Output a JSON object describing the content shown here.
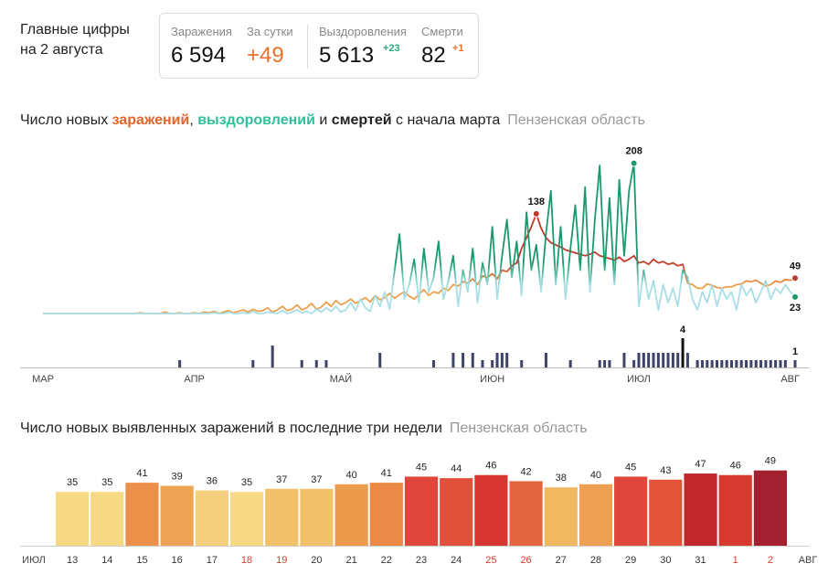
{
  "header": {
    "title": [
      "Главные цифры",
      "на 2 августа"
    ],
    "stats": [
      {
        "label": "Заражения",
        "value": "6 594"
      },
      {
        "label": "За сутки",
        "value": "+49",
        "color": "#e8702a"
      },
      {
        "label": "Выздоровления",
        "value": "5 613",
        "delta": "+23",
        "delta_color": "#2aa87a"
      },
      {
        "label": "Смерти",
        "value": "82",
        "delta": "+1",
        "delta_color": "#e8702a"
      }
    ]
  },
  "chart_data": [
    {
      "type": "line",
      "title_parts": [
        {
          "text": "Число новых ",
          "color": "#222",
          "bold": false
        },
        {
          "text": "заражений",
          "color": "#e0652a",
          "bold": true
        },
        {
          "text": ", ",
          "color": "#222",
          "bold": false
        },
        {
          "text": "выздоровлений",
          "color": "#2fbf9a",
          "bold": true
        },
        {
          "text": " и ",
          "color": "#222",
          "bold": false
        },
        {
          "text": "смертей",
          "color": "#222",
          "bold": true
        },
        {
          "text": " с начала марта",
          "color": "#222",
          "bold": false
        }
      ],
      "region": "Пензенская область",
      "categories": [
        "МАР",
        null,
        null,
        null,
        null,
        null,
        null,
        null,
        null,
        null,
        null,
        null,
        null,
        null,
        null,
        null,
        null,
        null,
        null,
        null,
        null,
        null,
        null,
        null,
        null,
        null,
        null,
        null,
        null,
        null,
        null,
        "АПР",
        null,
        null,
        null,
        null,
        null,
        null,
        null,
        null,
        null,
        null,
        null,
        null,
        null,
        null,
        null,
        null,
        null,
        null,
        null,
        null,
        null,
        null,
        null,
        null,
        null,
        null,
        null,
        null,
        null,
        "МАЙ",
        null,
        null,
        null,
        null,
        null,
        null,
        null,
        null,
        null,
        null,
        null,
        null,
        null,
        null,
        null,
        null,
        null,
        null,
        null,
        null,
        null,
        null,
        null,
        null,
        null,
        null,
        null,
        null,
        null,
        null,
        "ИЮН",
        null,
        null,
        null,
        null,
        null,
        null,
        null,
        null,
        null,
        null,
        null,
        null,
        null,
        null,
        null,
        null,
        null,
        null,
        null,
        null,
        null,
        null,
        null,
        null,
        null,
        null,
        null,
        null,
        null,
        "ИЮЛ",
        null,
        null,
        null,
        null,
        null,
        null,
        null,
        null,
        null,
        null,
        null,
        null,
        null,
        null,
        null,
        null,
        null,
        null,
        null,
        null,
        null,
        null,
        null,
        null,
        null,
        null,
        null,
        null,
        null,
        null,
        "АВГ",
        null
      ],
      "ylim": [
        0,
        210
      ],
      "y2lim": [
        0,
        5
      ],
      "series": [
        {
          "color": "#c0392b",
          "low_color": "#eca04e",
          "values": [
            0,
            0,
            0,
            0,
            0,
            0,
            0,
            0,
            0,
            0,
            0,
            0,
            0,
            0,
            0,
            0,
            0,
            0,
            0,
            0,
            1,
            0,
            0,
            0,
            0,
            2,
            0,
            0,
            1,
            0,
            0,
            1,
            0,
            2,
            1,
            3,
            0,
            2,
            4,
            1,
            3,
            5,
            2,
            6,
            3,
            4,
            8,
            2,
            5,
            10,
            4,
            6,
            12,
            5,
            8,
            14,
            6,
            9,
            16,
            10,
            18,
            12,
            15,
            20,
            14,
            18,
            22,
            16,
            25,
            19,
            22,
            28,
            21,
            26,
            30,
            24,
            20,
            27,
            33,
            25,
            30,
            28,
            35,
            32,
            40,
            38,
            44,
            42,
            48,
            40,
            52,
            50,
            55,
            48,
            60,
            58,
            66,
            70,
            90,
            105,
            120,
            138,
            118,
            105,
            98,
            95,
            92,
            88,
            86,
            84,
            82,
            80,
            82,
            85,
            80,
            78,
            76,
            74,
            78,
            72,
            75,
            80,
            70,
            72,
            68,
            75,
            70,
            72,
            68,
            70,
            66,
            68,
            42,
            40,
            35,
            35,
            41,
            39,
            36,
            35,
            37,
            37,
            40,
            41,
            45,
            44,
            46,
            42,
            38,
            40,
            45,
            43,
            47,
            46,
            49
          ]
        },
        {
          "color": "#1a9a6c",
          "low_color": "#a8dfe6",
          "values": [
            0,
            0,
            0,
            0,
            0,
            0,
            0,
            0,
            0,
            0,
            0,
            0,
            0,
            0,
            0,
            0,
            0,
            0,
            0,
            0,
            0,
            0,
            0,
            0,
            0,
            0,
            0,
            0,
            0,
            0,
            0,
            0,
            0,
            0,
            0,
            1,
            0,
            0,
            2,
            0,
            0,
            1,
            0,
            3,
            0,
            0,
            2,
            1,
            0,
            4,
            0,
            2,
            5,
            1,
            3,
            0,
            6,
            2,
            8,
            3,
            10,
            2,
            5,
            15,
            4,
            20,
            8,
            3,
            25,
            10,
            30,
            6,
            60,
            110,
            20,
            40,
            75,
            15,
            90,
            30,
            50,
            100,
            20,
            45,
            80,
            10,
            60,
            30,
            90,
            15,
            70,
            40,
            120,
            20,
            80,
            130,
            50,
            100,
            25,
            140,
            60,
            95,
            30,
            110,
            170,
            40,
            120,
            20,
            90,
            150,
            60,
            175,
            30,
            130,
            205,
            60,
            160,
            40,
            185,
            80,
            170,
            208,
            10,
            60,
            20,
            45,
            5,
            40,
            15,
            35,
            10,
            60,
            50,
            20,
            5,
            30,
            15,
            40,
            10,
            35,
            20,
            30,
            5,
            40,
            25,
            35,
            15,
            30,
            45,
            20,
            35,
            28,
            40,
            30,
            23
          ]
        },
        {
          "type": "bar",
          "axis": "y2",
          "color": "#3d4466",
          "values": [
            0,
            0,
            0,
            0,
            0,
            0,
            0,
            0,
            0,
            0,
            0,
            0,
            0,
            0,
            0,
            0,
            0,
            0,
            0,
            0,
            0,
            0,
            0,
            0,
            0,
            0,
            0,
            0,
            1,
            0,
            0,
            0,
            0,
            0,
            0,
            0,
            0,
            0,
            0,
            0,
            0,
            0,
            0,
            1,
            0,
            0,
            0,
            3,
            0,
            0,
            0,
            0,
            0,
            1,
            0,
            0,
            1,
            0,
            1,
            0,
            0,
            0,
            0,
            0,
            0,
            0,
            0,
            0,
            0,
            2,
            0,
            0,
            0,
            0,
            0,
            0,
            0,
            0,
            0,
            0,
            1,
            0,
            0,
            0,
            2,
            0,
            2,
            0,
            2,
            0,
            1,
            0,
            1,
            2,
            2,
            2,
            0,
            0,
            1,
            0,
            0,
            0,
            0,
            2,
            0,
            0,
            0,
            0,
            1,
            0,
            0,
            0,
            0,
            0,
            1,
            1,
            1,
            0,
            0,
            2,
            0,
            1,
            2,
            2,
            2,
            2,
            2,
            2,
            2,
            2,
            2,
            4,
            2,
            0,
            1,
            1,
            1,
            1,
            1,
            1,
            1,
            1,
            1,
            1,
            1,
            1,
            1,
            1,
            1,
            1,
            1,
            1,
            1,
            0,
            1
          ]
        }
      ]
    },
    {
      "type": "bar",
      "title": "Число новых выявленных заражений в последние три недели",
      "region": "Пензенская область",
      "start_label": "ИЮЛ",
      "end_label": "АВГ",
      "categories": [
        "13",
        "14",
        "15",
        "16",
        "17",
        "18",
        "19",
        "20",
        "21",
        "22",
        "23",
        "24",
        "25",
        "26",
        "27",
        "28",
        "29",
        "30",
        "31",
        "1",
        "2"
      ],
      "label_colors": [
        "#333",
        "#333",
        "#333",
        "#333",
        "#333",
        "#d63a2f",
        "#d63a2f",
        "#333",
        "#333",
        "#333",
        "#333",
        "#333",
        "#d63a2f",
        "#d63a2f",
        "#333",
        "#333",
        "#333",
        "#333",
        "#333",
        "#d63a2f",
        "#d63a2f"
      ],
      "values": [
        35,
        35,
        41,
        39,
        36,
        35,
        37,
        37,
        40,
        41,
        45,
        44,
        46,
        42,
        38,
        40,
        45,
        43,
        47,
        46,
        49
      ],
      "colors": [
        "#f6d985",
        "#f6d985",
        "#ec8f48",
        "#eea254",
        "#f5cf7c",
        "#f6d985",
        "#f3c06a",
        "#f3c06a",
        "#ec9a4c",
        "#ea8a46",
        "#e0463a",
        "#e0503a",
        "#d6362f",
        "#e2653f",
        "#f1b862",
        "#ee9f52",
        "#e0463a",
        "#e2553a",
        "#c0282d",
        "#d63a2f",
        "#a32030"
      ],
      "ylim": [
        0,
        50
      ]
    }
  ]
}
